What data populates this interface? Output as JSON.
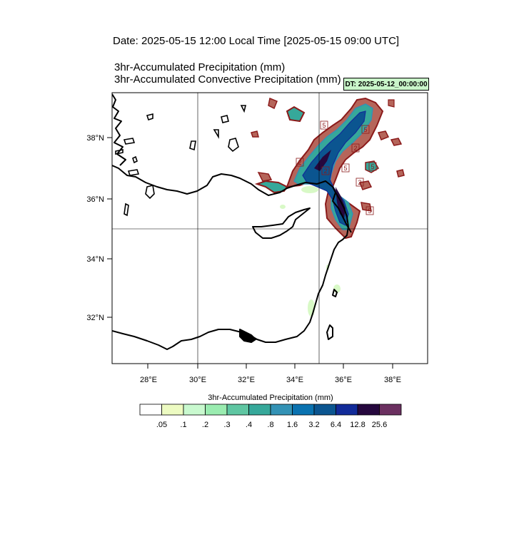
{
  "header": {
    "date_line": "Date: 2025-05-15  12:00 Local Time [2025-05-15  09:00 UTC]",
    "title_line_1": "3hr-Accumulated Precipitation   (mm)",
    "title_line_2": "3hr-Accumulated Convective Precipitation   (mm)",
    "dt_badge": "DT: 2025-05-12_00:00:00"
  },
  "map": {
    "lat_labels": [
      "38°N",
      "36°N",
      "34°N",
      "32°N"
    ],
    "lon_labels": [
      "28°E",
      "30°E",
      "32°E",
      "34°E",
      "36°E",
      "38°E"
    ],
    "contour_labels": [
      "5",
      "5",
      "2",
      "5",
      "2",
      "5",
      "2",
      "5",
      "2"
    ],
    "colors": {
      "coast": "#000000",
      "convective_outline": "#8b1a1a",
      "convective_fill": "#b5655a"
    }
  },
  "colorbar": {
    "title": "3hr-Accumulated Precipitation  (mm)",
    "labels": [
      ".05",
      ".1",
      ".2",
      ".3",
      ".4",
      ".8",
      "1.6",
      "3.2",
      "6.4",
      "12.8",
      "25.6"
    ],
    "colors": [
      "#ffffff",
      "#edfbc2",
      "#c9f9cf",
      "#9aecb0",
      "#5fc6a2",
      "#36a89a",
      "#3392b5",
      "#0a72b0",
      "#0b5590",
      "#122b99",
      "#26083e",
      "#6b3060"
    ]
  }
}
